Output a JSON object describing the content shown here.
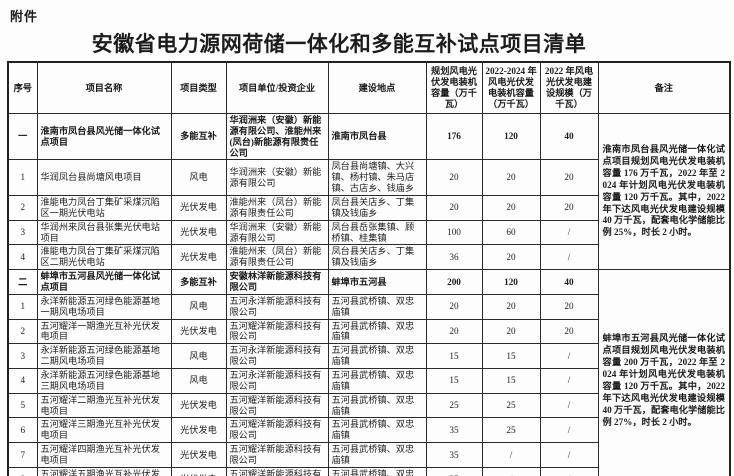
{
  "page": {
    "attachment_label": "附件",
    "title": "安徽省电力源网荷储一体化和多能互补试点项目清单",
    "text_color": "#1c1c1c",
    "border_color": "#2a2a2a",
    "background_color": "#fdfdfd"
  },
  "table": {
    "headers": [
      "序号",
      "项目名称",
      "项目类型",
      "项目单位/投资企业",
      "建设地点",
      "规划风电光伏发电装机容量（万千瓦）",
      "2022-2024 年风电光伏发电装机容量（万千瓦）",
      "2022 年风电光伏发电建设规模（万千瓦）",
      "备注"
    ],
    "sections": [
      {
        "remark": "淮南市凤台县风光储一体化试点项目规划风电光伏发电装机容量 176 万千瓦，2022 年至 2024 年计划风电光伏发电装机容量 120 万千瓦。其中，2022 年下达风电光伏发电建设规模 40 万千瓦，配套电化学储能比例 25%，时长 2 小时。",
        "rows": [
          {
            "no": "一",
            "name": "淮南市凤台县风光储一体化试点项目",
            "type": "多能互补",
            "company": "华润洲来（安徽）新能源有限公司、淮能州来(凤台)新能源有限责任公司",
            "location": "淮南市凤台县",
            "planned": "176",
            "y2022_2024": "120",
            "y2022": "40",
            "bold": true
          },
          {
            "no": "1",
            "name": "华润凤台县尚塘风电项目",
            "type": "风电",
            "company": "华润洲来（安徽）新能源有限公司",
            "location": "凤台县尚塘镇、大兴镇、杨村镇、朱马店镇、古店乡、钱庙乡",
            "planned": "20",
            "y2022_2024": "20",
            "y2022": "20",
            "bold": false
          },
          {
            "no": "2",
            "name": "淮能电力凤台丁集矿采煤沉陷区一期光伏电站",
            "type": "光伏发电",
            "company": "淮能州来（凤台）新能源有限责任公司",
            "location": "凤台县关店乡、丁集镇及钱庙乡",
            "planned": "20",
            "y2022_2024": "20",
            "y2022": "20",
            "bold": false
          },
          {
            "no": "3",
            "name": "华润州来凤台县张集光伏电站项目",
            "type": "光伏发电",
            "company": "华润洲来（安徽）新能源有限公司",
            "location": "凤台县岳张集镇、顾桥镇、桂集镇",
            "planned": "100",
            "y2022_2024": "60",
            "y2022": "/",
            "bold": false
          },
          {
            "no": "4",
            "name": "淮能电力凤台丁集矿采煤沉陷区二期光伏电站",
            "type": "光伏发电",
            "company": "淮能州来（凤台）新能源有限责任公司",
            "location": "凤台县关店乡、丁集镇及钱庙乡",
            "planned": "36",
            "y2022_2024": "20",
            "y2022": "/",
            "bold": false
          }
        ]
      },
      {
        "remark": "蚌埠市五河县风光储一体化试点项目规划风电光伏发电装机容量 200 万千瓦，2022 年至 2024 年计划风电光伏发电装机容量 120 万千瓦。其中，2022 年下达风电光伏发电建设规模 40 万千瓦，配套电化学储能比例 27%，时长 2 小时。",
        "rows": [
          {
            "no": "二",
            "name": "蚌埠市五河县风光储一体化试点项目",
            "type": "多能互补",
            "company": "安徽林洋新能源科技有限公司",
            "location": "蚌埠市五河县",
            "planned": "200",
            "y2022_2024": "120",
            "y2022": "40",
            "bold": true
          },
          {
            "no": "1",
            "name": "永洋新能源五河绿色能源基地一期风电场项目",
            "type": "风电",
            "company": "五河永洋新能源科技有限公司",
            "location": "五河县武桥镇、双忠庙镇",
            "planned": "20",
            "y2022_2024": "20",
            "y2022": "20",
            "bold": false
          },
          {
            "no": "2",
            "name": "五河耀洋一期渔光互补光伏发电项目",
            "type": "光伏发电",
            "company": "五河耀洋新能源科技有限公司",
            "location": "五河县武桥镇、双忠庙镇",
            "planned": "20",
            "y2022_2024": "20",
            "y2022": "20",
            "bold": false
          },
          {
            "no": "3",
            "name": "永洋新能源五河绿色能源基地二期风电场项目",
            "type": "风电",
            "company": "五河永洋新能源科技有限公司",
            "location": "五河县武桥镇、双忠庙镇",
            "planned": "15",
            "y2022_2024": "15",
            "y2022": "/",
            "bold": false
          },
          {
            "no": "4",
            "name": "永洋新能源五河绿色能源基地三期风电场项目",
            "type": "风电",
            "company": "五河永洋新能源科技有限公司",
            "location": "五河县武桥镇、双忠庙镇",
            "planned": "15",
            "y2022_2024": "15",
            "y2022": "/",
            "bold": false
          },
          {
            "no": "5",
            "name": "五河耀洋二期渔光互补光伏发电项目",
            "type": "光伏发电",
            "company": "五河耀洋新能源科技有限公司",
            "location": "五河县武桥镇、双忠庙镇",
            "planned": "25",
            "y2022_2024": "25",
            "y2022": "/",
            "bold": false
          },
          {
            "no": "6",
            "name": "五河耀洋三期渔光互补光伏发电项目",
            "type": "光伏发电",
            "company": "五河耀洋新能源科技有限公司",
            "location": "五河县武桥镇、双忠庙镇",
            "planned": "35",
            "y2022_2024": "25",
            "y2022": "/",
            "bold": false
          },
          {
            "no": "7",
            "name": "五河耀洋四期渔光互补光伏发电项目",
            "type": "光伏发电",
            "company": "五河耀洋新能源科技有限公司",
            "location": "五河县武桥镇、双忠庙镇",
            "planned": "35",
            "y2022_2024": "/",
            "y2022": "/",
            "bold": false
          },
          {
            "no": "8",
            "name": "五河耀洋五期渔光互补光伏发电项目",
            "type": "光伏发电",
            "company": "五河耀洋新能源科技有限公司",
            "location": "五河县武桥镇、双忠庙镇",
            "planned": "35",
            "y2022_2024": "/",
            "y2022": "/",
            "bold": false
          }
        ]
      }
    ]
  }
}
